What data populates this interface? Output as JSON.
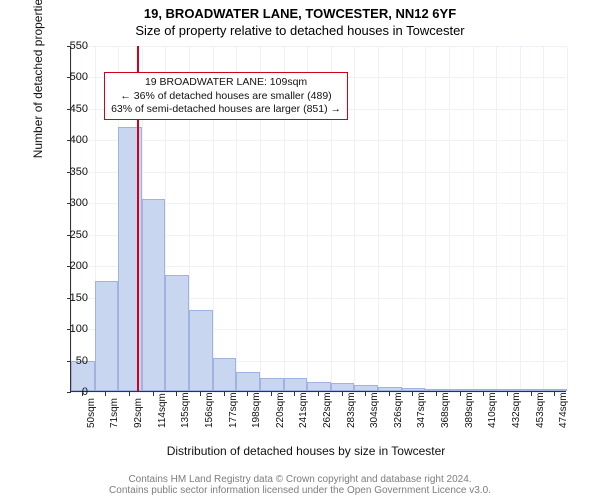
{
  "title": "19, BROADWATER LANE, TOWCESTER, NN12 6YF",
  "subtitle": "Size of property relative to detached houses in Towcester",
  "y_axis": {
    "title": "Number of detached properties",
    "min": 0,
    "max": 550,
    "step": 50
  },
  "x_axis": {
    "title": "Distribution of detached houses by size in Towcester",
    "start": 50,
    "step": 21.2,
    "count": 21,
    "unit": "sqm"
  },
  "bar_values": [
    48,
    175,
    420,
    305,
    185,
    128,
    52,
    30,
    21,
    20,
    14,
    12,
    9,
    7,
    5,
    3,
    3,
    2,
    2,
    2,
    1
  ],
  "bar_color": "#c9d6f0",
  "bar_border": "#9fb3de",
  "grid_color": "#eef1f8",
  "reference": {
    "value_sqm": 109,
    "color": "#d0021b"
  },
  "annotation": {
    "lines": [
      "19 BROADWATER LANE: 109sqm",
      "← 36% of detached houses are smaller (489)",
      "63% of semi-detached houses are larger (851) →"
    ],
    "left_bar_index": 1.4,
    "y_value": 508
  },
  "footer": {
    "line1": "Contains HM Land Registry data © Crown copyright and database right 2024.",
    "line2": "Contains public sector information licensed under the Open Government Licence v3.0."
  }
}
